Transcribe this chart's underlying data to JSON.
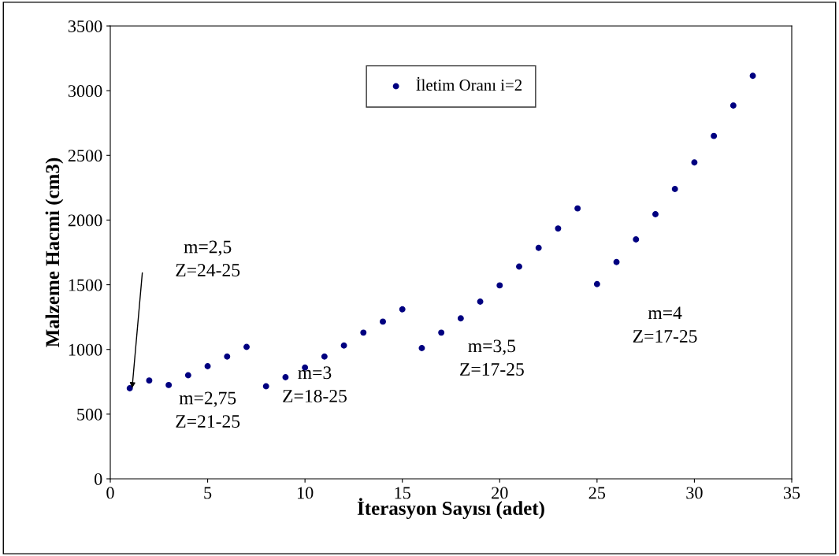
{
  "chart_data": {
    "type": "scatter",
    "xlabel": "İterasyon Sayısı (adet)",
    "ylabel": "Malzeme Hacmi (cm3)",
    "x": [
      1,
      2,
      3,
      4,
      5,
      6,
      7,
      8,
      9,
      10,
      11,
      12,
      13,
      14,
      15,
      16,
      17,
      18,
      19,
      20,
      21,
      22,
      23,
      24,
      25,
      26,
      27,
      28,
      29,
      30,
      31,
      32,
      33
    ],
    "series": [
      {
        "name": "İletim Oranı i=2",
        "color": "#000080",
        "values": [
          700,
          760,
          725,
          800,
          870,
          945,
          1020,
          715,
          785,
          860,
          945,
          1030,
          1130,
          1215,
          1310,
          1010,
          1130,
          1240,
          1370,
          1495,
          1640,
          1785,
          1935,
          2090,
          1505,
          1675,
          1850,
          2045,
          2240,
          2445,
          2650,
          2885,
          3115
        ]
      }
    ],
    "xlim": [
      0,
      35
    ],
    "xticks": [
      0,
      5,
      10,
      15,
      20,
      25,
      30,
      35
    ],
    "ylim": [
      0,
      3500
    ],
    "yticks": [
      0,
      500,
      1000,
      1500,
      2000,
      2500,
      3000,
      3500
    ],
    "grid": false,
    "legend": "top",
    "marker": "circle",
    "annotations": [
      "m=2,5\nZ=24-25",
      "m=2,75\nZ=21-25",
      "m=3\nZ=18-25",
      "m=3,5\nZ=17-25",
      "m=4\nZ=17-25"
    ]
  }
}
